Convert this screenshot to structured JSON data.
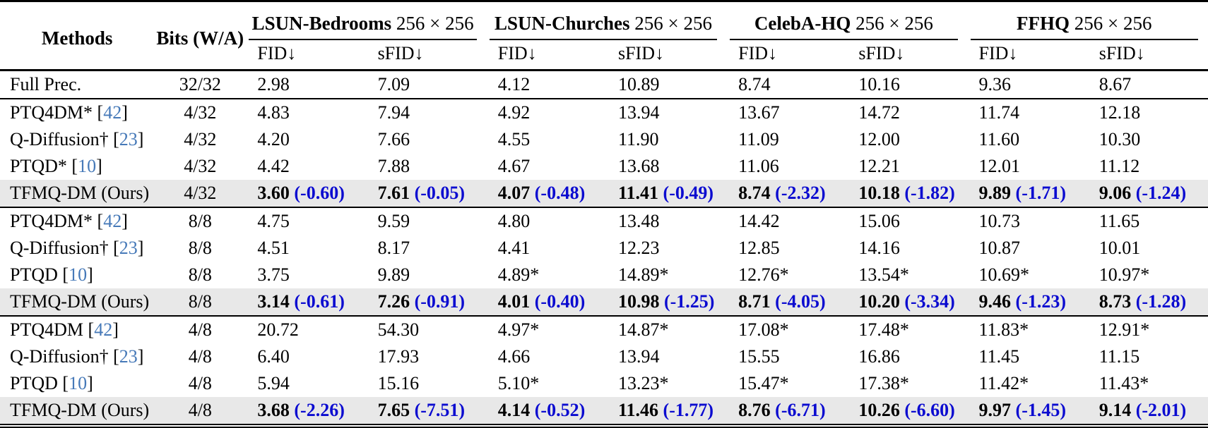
{
  "table": {
    "col_headers": {
      "methods": "Methods",
      "bits": "Bits (W/A)",
      "fid": "FID↓",
      "sfid": "sFID↓"
    },
    "groups": [
      {
        "name": "LSUN-Bedrooms",
        "size": "256 × 256"
      },
      {
        "name": "LSUN-Churches",
        "size": "256 × 256"
      },
      {
        "name": "CelebA-HQ",
        "size": "256 × 256"
      },
      {
        "name": "FFHQ",
        "size": "256 × 256"
      }
    ],
    "colors": {
      "citation_blue": "#4679b8",
      "delta_blue": "#0b0bd0",
      "highlight_gray": "#e8e8e8"
    },
    "sections": [
      {
        "rows": [
          {
            "method": "Full Prec.",
            "citation": null,
            "bits": "32/32",
            "highlight": false,
            "values": [
              "2.98",
              "7.09",
              "4.12",
              "10.89",
              "8.74",
              "10.16",
              "9.36",
              "8.67"
            ]
          }
        ]
      },
      {
        "rows": [
          {
            "method": "PTQ4DM*",
            "citation": "42",
            "bits": "4/32",
            "highlight": false,
            "values": [
              "4.83",
              "7.94",
              "4.92",
              "13.94",
              "13.67",
              "14.72",
              "11.74",
              "12.18"
            ]
          },
          {
            "method": "Q-Diffusion†",
            "citation": "23",
            "bits": "4/32",
            "highlight": false,
            "values": [
              "4.20",
              "7.66",
              "4.55",
              "11.90",
              "11.09",
              "12.00",
              "11.60",
              "10.30"
            ]
          },
          {
            "method": "PTQD*",
            "citation": "10",
            "bits": "4/32",
            "highlight": false,
            "values": [
              "4.42",
              "7.88",
              "4.67",
              "13.68",
              "11.06",
              "12.21",
              "12.01",
              "11.12"
            ]
          },
          {
            "method": "TFMQ-DM (Ours)",
            "citation": null,
            "bits": "4/32",
            "highlight": true,
            "values": [
              "3.60",
              "7.61",
              "4.07",
              "11.41",
              "8.74",
              "10.18",
              "9.89",
              "9.06"
            ],
            "deltas": [
              "(-0.60)",
              "(-0.05)",
              "(-0.48)",
              "(-0.49)",
              "(-2.32)",
              "(-1.82)",
              "(-1.71)",
              "(-1.24)"
            ]
          }
        ]
      },
      {
        "rows": [
          {
            "method": "PTQ4DM*",
            "citation": "42",
            "bits": "8/8",
            "highlight": false,
            "values": [
              "4.75",
              "9.59",
              "4.80",
              "13.48",
              "14.42",
              "15.06",
              "10.73",
              "11.65"
            ]
          },
          {
            "method": "Q-Diffusion†",
            "citation": "23",
            "bits": "8/8",
            "highlight": false,
            "values": [
              "4.51",
              "8.17",
              "4.41",
              "12.23",
              "12.85",
              "14.16",
              "10.87",
              "10.01"
            ]
          },
          {
            "method": "PTQD",
            "citation": "10",
            "bits": "8/8",
            "highlight": false,
            "values": [
              "3.75",
              "9.89",
              "4.89*",
              "14.89*",
              "12.76*",
              "13.54*",
              "10.69*",
              "10.97*"
            ]
          },
          {
            "method": "TFMQ-DM (Ours)",
            "citation": null,
            "bits": "8/8",
            "highlight": true,
            "values": [
              "3.14",
              "7.26",
              "4.01",
              "10.98",
              "8.71",
              "10.20",
              "9.46",
              "8.73"
            ],
            "deltas": [
              "(-0.61)",
              "(-0.91)",
              "(-0.40)",
              "(-1.25)",
              "(-4.05)",
              "(-3.34)",
              "(-1.23)",
              "(-1.28)"
            ]
          }
        ]
      },
      {
        "rows": [
          {
            "method": "PTQ4DM",
            "citation": "42",
            "bits": "4/8",
            "highlight": false,
            "values": [
              "20.72",
              "54.30",
              "4.97*",
              "14.87*",
              "17.08*",
              "17.48*",
              "11.83*",
              "12.91*"
            ]
          },
          {
            "method": "Q-Diffusion†",
            "citation": "23",
            "bits": "4/8",
            "highlight": false,
            "values": [
              "6.40",
              "17.93",
              "4.66",
              "13.94",
              "15.55",
              "16.86",
              "11.45",
              "11.15"
            ]
          },
          {
            "method": "PTQD",
            "citation": "10",
            "bits": "4/8",
            "highlight": false,
            "values": [
              "5.94",
              "15.16",
              "5.10*",
              "13.23*",
              "15.47*",
              "17.38*",
              "11.42*",
              "11.43*"
            ]
          },
          {
            "method": "TFMQ-DM (Ours)",
            "citation": null,
            "bits": "4/8",
            "highlight": true,
            "values": [
              "3.68",
              "7.65",
              "4.14",
              "11.46",
              "8.76",
              "10.26",
              "9.97",
              "9.14"
            ],
            "deltas": [
              "(-2.26)",
              "(-7.51)",
              "(-0.52)",
              "(-1.77)",
              "(-6.71)",
              "(-6.60)",
              "(-1.45)",
              "(-2.01)"
            ]
          }
        ]
      }
    ]
  }
}
